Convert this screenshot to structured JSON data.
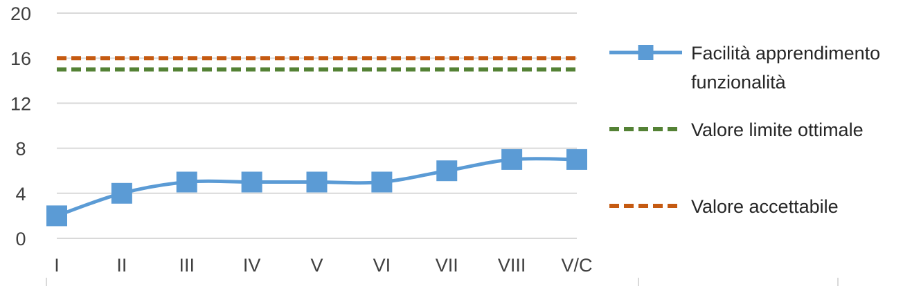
{
  "chart_data": {
    "type": "line",
    "categories": [
      "I",
      "II",
      "III",
      "IV",
      "V",
      "VI",
      "VII",
      "VIII",
      "V/C"
    ],
    "ylim": [
      0,
      20
    ],
    "yticks": [
      0,
      4,
      8,
      12,
      16,
      20
    ],
    "grid": true,
    "legend_position": "right",
    "series": [
      {
        "name": "Facilità apprendimento funzionalità",
        "name_lines": [
          "Facilità apprendimento",
          "funzionalità"
        ],
        "values": [
          2,
          4,
          5,
          5,
          5,
          5,
          6,
          7,
          7
        ],
        "color": "#5B9BD5",
        "style": "smooth-line-square-markers"
      },
      {
        "name": "Valore limite ottimale",
        "name_lines": [
          "Valore limite ottimale"
        ],
        "values": [
          15,
          15,
          15,
          15,
          15,
          15,
          15,
          15,
          15
        ],
        "color": "#548235",
        "style": "dashed"
      },
      {
        "name": "Valore accettabile",
        "name_lines": [
          "Valore accettabile"
        ],
        "values": [
          16,
          16,
          16,
          16,
          16,
          16,
          16,
          16,
          16
        ],
        "color": "#C55A11",
        "style": "dashed"
      }
    ]
  }
}
